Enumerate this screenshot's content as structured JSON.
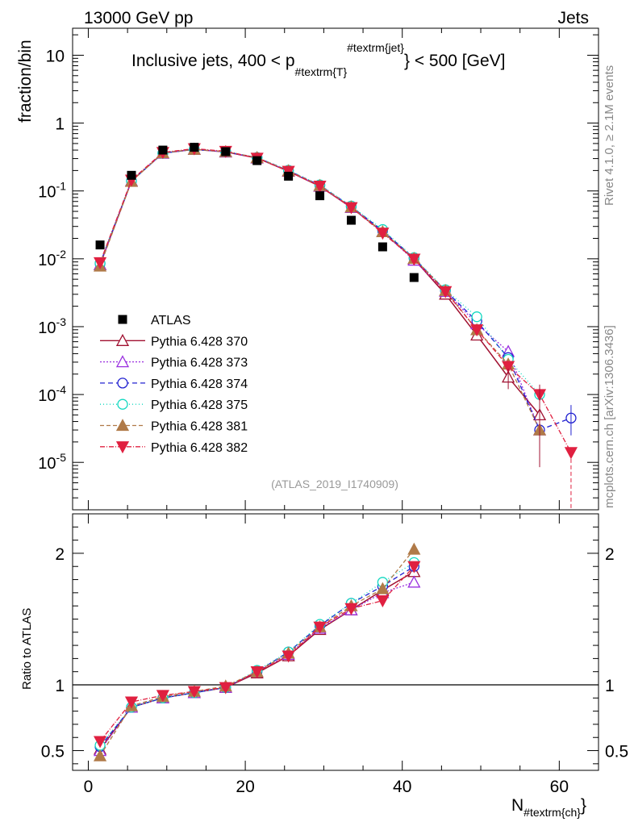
{
  "header": {
    "energy": "13000 GeV pp",
    "observable": "Jets"
  },
  "side_labels": {
    "rivet": "Rivet 4.1.0, ≥ 2.1M events",
    "mcplots": "mcplots.cern.ch [arXiv:1306.3436]"
  },
  "chart_data": {
    "type": "scatter",
    "title": "Inclusive jets, 400 < p_{#textrm{T}}^{#textrm{jet}} < 500 [GeV]",
    "title_parts": {
      "pre": "Inclusive jets, 400 < p",
      "sub": "#textrm{T}",
      "sup": "#textrm{jet}",
      "post": "} < 500 [GeV]"
    },
    "xlabel_main": "N",
    "xlabel_sub": "#textrm{ch}",
    "xlabel_close": "}",
    "ylabel": "fraction/bin",
    "ratio_ylabel": "Ratio to ATLAS",
    "analysis_id": "(ATLAS_2019_I1740909)",
    "xlim": [
      -2,
      65
    ],
    "ylim_log": [
      2e-06,
      25
    ],
    "ratio_ylim": [
      0.35,
      2.3
    ],
    "x_ticks": [
      "0",
      "20",
      "40",
      "60"
    ],
    "y_ticks": [
      "10^-5",
      "10^-4",
      "10^-3",
      "10^-2",
      "10^-1",
      "1",
      "10"
    ],
    "ratio_ticks": [
      "0.5",
      "1",
      "2"
    ],
    "data": {
      "name": "ATLAS",
      "x": [
        1.5,
        5.5,
        9.5,
        13.5,
        17.5,
        21.5,
        25.5,
        29.5,
        33.5,
        37.5,
        41.5
      ],
      "y": [
        0.016,
        0.17,
        0.4,
        0.44,
        0.38,
        0.28,
        0.165,
        0.085,
        0.037,
        0.015,
        0.0053
      ]
    },
    "series": [
      {
        "name": "Pythia 6.428 370",
        "color": "#a01030",
        "marker": "tri-up-open",
        "dash": "",
        "x": [
          1.5,
          5.5,
          9.5,
          13.5,
          17.5,
          21.5,
          25.5,
          29.5,
          33.5,
          37.5,
          41.5,
          45.5,
          49.5,
          53.5,
          57.5
        ],
        "y": [
          0.0082,
          0.14,
          0.36,
          0.41,
          0.375,
          0.305,
          0.195,
          0.117,
          0.057,
          0.025,
          0.0099,
          0.003,
          0.00075,
          0.00018,
          5e-05
        ],
        "ratio": [
          0.51,
          0.83,
          0.9,
          0.94,
          0.98,
          1.09,
          1.22,
          1.42,
          1.57,
          1.72,
          1.86
        ]
      },
      {
        "name": "Pythia 6.428 373",
        "color": "#9a30e0",
        "marker": "tri-up-open",
        "dash": "2,2",
        "x": [
          1.5,
          5.5,
          9.5,
          13.5,
          17.5,
          21.5,
          25.5,
          29.5,
          33.5,
          37.5,
          41.5,
          45.5,
          49.5,
          53.5,
          57.5
        ],
        "y": [
          0.0082,
          0.14,
          0.36,
          0.41,
          0.375,
          0.307,
          0.197,
          0.118,
          0.057,
          0.025,
          0.0095,
          0.0033,
          0.0011,
          0.00043,
          3e-05
        ],
        "ratio": [
          0.5,
          0.83,
          0.9,
          0.94,
          0.98,
          1.1,
          1.23,
          1.43,
          1.57,
          1.7,
          1.78
        ]
      },
      {
        "name": "Pythia 6.428 374",
        "color": "#2020d0",
        "marker": "circle-open",
        "dash": "6,4",
        "x": [
          1.5,
          5.5,
          9.5,
          13.5,
          17.5,
          21.5,
          25.5,
          29.5,
          33.5,
          37.5,
          41.5,
          45.5,
          49.5,
          53.5,
          57.5,
          61.5
        ],
        "y": [
          0.0085,
          0.14,
          0.36,
          0.41,
          0.378,
          0.31,
          0.2,
          0.121,
          0.059,
          0.026,
          0.0102,
          0.0034,
          0.0012,
          0.00035,
          3e-05,
          4.5e-05
        ],
        "ratio": [
          0.53,
          0.83,
          0.9,
          0.94,
          0.98,
          1.1,
          1.25,
          1.45,
          1.62,
          1.75,
          1.9
        ]
      },
      {
        "name": "Pythia 6.428 375",
        "color": "#10d8c0",
        "marker": "circle-open",
        "dash": "1,3",
        "x": [
          1.5,
          5.5,
          9.5,
          13.5,
          17.5,
          21.5,
          25.5,
          29.5,
          33.5,
          37.5,
          41.5,
          45.5,
          49.5,
          53.5,
          57.5
        ],
        "y": [
          0.0086,
          0.14,
          0.36,
          0.41,
          0.38,
          0.312,
          0.202,
          0.123,
          0.06,
          0.027,
          0.0104,
          0.0035,
          0.0014,
          0.00033,
          0.0001
        ],
        "ratio": [
          0.54,
          0.83,
          0.9,
          0.94,
          0.98,
          1.11,
          1.25,
          1.46,
          1.62,
          1.78,
          1.93
        ]
      },
      {
        "name": "Pythia 6.428 381",
        "color": "#b07a48",
        "marker": "tri-up-filled",
        "dash": "5,3",
        "x": [
          1.5,
          5.5,
          9.5,
          13.5,
          17.5,
          21.5,
          25.5,
          29.5,
          33.5,
          37.5,
          41.5,
          45.5,
          49.5,
          53.5,
          57.5
        ],
        "y": [
          0.0078,
          0.138,
          0.365,
          0.41,
          0.38,
          0.31,
          0.198,
          0.12,
          0.058,
          0.025,
          0.0101,
          0.0034,
          0.0009,
          0.00028,
          3e-05
        ],
        "ratio": [
          0.46,
          0.84,
          0.91,
          0.95,
          0.99,
          1.1,
          1.24,
          1.44,
          1.6,
          1.73,
          2.03
        ]
      },
      {
        "name": "Pythia 6.428 382",
        "color": "#e02040",
        "marker": "tri-down-filled",
        "dash": "6,2,1,2",
        "x": [
          1.5,
          5.5,
          9.5,
          13.5,
          17.5,
          21.5,
          25.5,
          29.5,
          33.5,
          37.5,
          41.5,
          45.5,
          49.5,
          53.5,
          57.5,
          61.5
        ],
        "y": [
          0.0088,
          0.145,
          0.37,
          0.42,
          0.385,
          0.305,
          0.195,
          0.118,
          0.057,
          0.024,
          0.0099,
          0.0033,
          0.0009,
          0.00026,
          0.0001,
          1.4e-05
        ],
        "ratio": [
          0.57,
          0.87,
          0.92,
          0.95,
          0.98,
          1.1,
          1.22,
          1.44,
          1.58,
          1.64,
          1.9
        ]
      }
    ]
  }
}
